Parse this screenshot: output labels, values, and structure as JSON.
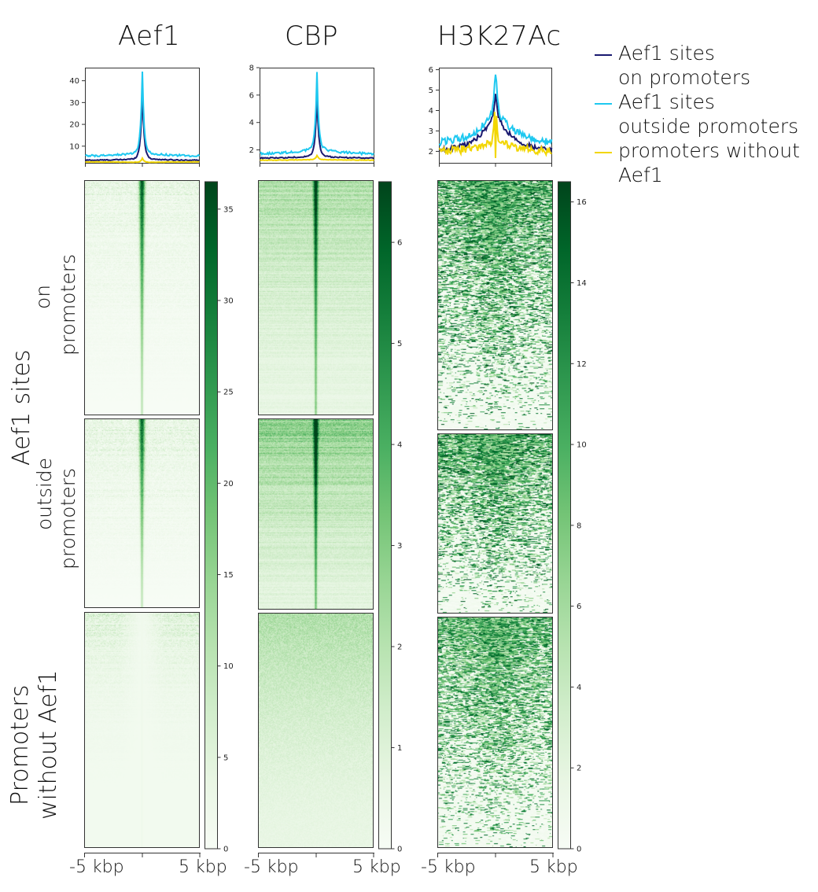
{
  "chart_data": {
    "type": "heatmap",
    "columns": [
      {
        "title": "Aef1",
        "profile": {
          "type": "line",
          "yticks": [
            10,
            20,
            30,
            40
          ],
          "ylim": [
            2,
            46
          ],
          "x_range_kbp": [
            -5,
            5
          ],
          "series": [
            {
              "name": "Aef1 sites on promoters",
              "color": "#191970",
              "baseline": 3.5,
              "peak": 36,
              "shoulder": 4.5,
              "noise": 0.25
            },
            {
              "name": "Aef1 sites outside promoters",
              "color": "#1ec8f0",
              "baseline": 5.5,
              "peak": 44,
              "shoulder": 7.5,
              "noise": 0.45
            },
            {
              "name": "promoters without Aef1",
              "color": "#f2d600",
              "baseline": 2.8,
              "peak": 4.5,
              "shoulder": 2.5,
              "noise": 0.1
            }
          ]
        },
        "colorbar": {
          "min": 0,
          "max": 36.5,
          "ticks": [
            0,
            5,
            10,
            15,
            20,
            25,
            30,
            35
          ]
        },
        "heatmaps": [
          {
            "group": "Aef1 sites on promoters",
            "style": "sharp",
            "center_max": 32,
            "bg_max": 12
          },
          {
            "group": "Aef1 sites outside promoters",
            "style": "sharp",
            "center_max": 30,
            "bg_max": 14
          },
          {
            "group": "promoters without Aef1",
            "style": "dip",
            "center_max": 4,
            "bg_max": 10
          }
        ]
      },
      {
        "title": "CBP",
        "profile": {
          "type": "line",
          "yticks": [
            2,
            4,
            6,
            8
          ],
          "ylim": [
            1,
            8
          ],
          "x_range_kbp": [
            -5,
            5
          ],
          "series": [
            {
              "name": "Aef1 sites on promoters",
              "color": "#191970",
              "baseline": 1.4,
              "peak": 6.0,
              "shoulder": 1.6,
              "noise": 0.04
            },
            {
              "name": "Aef1 sites outside promoters",
              "color": "#1ec8f0",
              "baseline": 1.7,
              "peak": 7.7,
              "shoulder": 2.2,
              "noise": 0.09
            },
            {
              "name": "promoters without Aef1",
              "color": "#f2d600",
              "baseline": 1.25,
              "peak": 1.6,
              "shoulder": 1.3,
              "noise": 0.02
            }
          ]
        },
        "colorbar": {
          "min": 0,
          "max": 6.6,
          "ticks": [
            0,
            1,
            2,
            3,
            4,
            5,
            6
          ]
        },
        "heatmaps": [
          {
            "group": "Aef1 sites on promoters",
            "style": "soft",
            "center_max": 5.5,
            "bg_max": 3.2
          },
          {
            "group": "Aef1 sites outside promoters",
            "style": "soft",
            "center_max": 6.2,
            "bg_max": 4.2
          },
          {
            "group": "promoters without Aef1",
            "style": "flat",
            "center_max": 2.0,
            "bg_max": 3.0
          }
        ]
      },
      {
        "title": "H3K27Ac",
        "profile": {
          "type": "line",
          "yticks": [
            2,
            3,
            4,
            5,
            6
          ],
          "ylim": [
            1.4,
            6.1
          ],
          "x_range_kbp": [
            -5,
            5
          ],
          "series": [
            {
              "name": "Aef1 sites on promoters",
              "color": "#191970",
              "baseline": 2.0,
              "peak": 4.7,
              "shoulder": 3.9,
              "noise": 0.12,
              "broad": true
            },
            {
              "name": "Aef1 sites outside promoters",
              "color": "#1ec8f0",
              "baseline": 2.4,
              "peak": 5.9,
              "shoulder": 4.2,
              "noise": 0.18,
              "broad": true
            },
            {
              "name": "promoters without Aef1",
              "color": "#f2d600",
              "baseline": 2.0,
              "peak": 4.2,
              "shoulder": 2.6,
              "noise": 0.2,
              "broad": true,
              "dip": 1.6
            }
          ]
        },
        "colorbar": {
          "min": 0,
          "max": 16.5,
          "ticks": [
            0,
            2,
            4,
            6,
            8,
            10,
            12,
            14,
            16
          ]
        },
        "heatmaps": [
          {
            "group": "Aef1 sites on promoters",
            "style": "speckle",
            "center_max": 14,
            "bg_max": 16
          },
          {
            "group": "Aef1 sites outside promoters",
            "style": "speckle",
            "center_max": 14,
            "bg_max": 16
          },
          {
            "group": "promoters without Aef1",
            "style": "speckle",
            "center_max": 13,
            "bg_max": 15
          }
        ]
      }
    ],
    "xtick_labels": [
      "-5 kbp",
      "5 kbp"
    ],
    "legend": {
      "placement": "top-right",
      "entries": [
        {
          "line1": "Aef1 sites",
          "line2": "on promoters",
          "color": "#191970"
        },
        {
          "line1": "Aef1 sites",
          "line2": "outside promoters",
          "color": "#1ec8f0"
        },
        {
          "line1": "promoters without",
          "line2": "Aef1",
          "color": "#f2d600"
        }
      ]
    },
    "row_labels": {
      "group_title": "Aef1 sites",
      "on_promoters": [
        "on",
        "promoters"
      ],
      "outside_promoters": [
        "outside",
        "promoters"
      ],
      "promoters_without": [
        "Promoters",
        "without Aef1"
      ]
    },
    "colormap": "Greens"
  }
}
